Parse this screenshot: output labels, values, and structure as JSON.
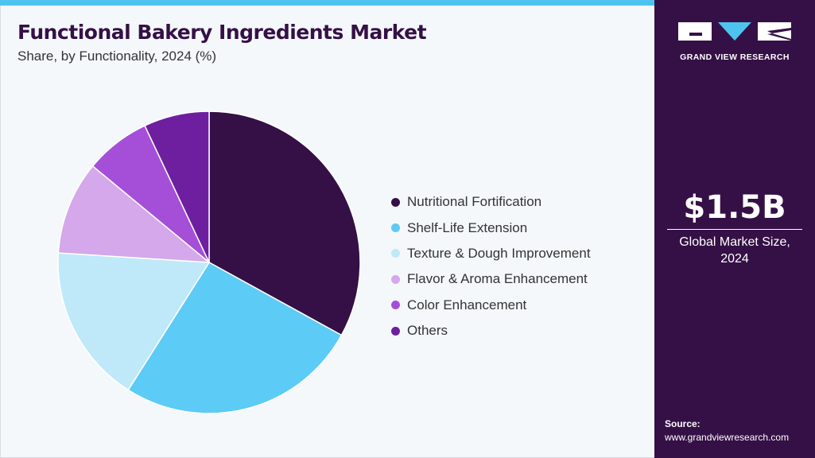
{
  "header": {
    "title": "Functional Bakery Ingredients Market",
    "subtitle": "Share, by Functionality, 2024 (%)"
  },
  "chart_data": {
    "type": "pie",
    "title": "Functional Bakery Ingredients Market",
    "subtitle": "Share, by Functionality, 2024 (%)",
    "categories": [
      "Nutritional Fortification",
      "Shelf-Life Extension",
      "Texture & Dough Improvement",
      "Flavor & Aroma Enhancement",
      "Color Enhancement",
      "Others"
    ],
    "values": [
      33,
      26,
      17,
      10,
      7,
      7
    ],
    "colors": [
      "#351046",
      "#5ccbf5",
      "#bfe9f9",
      "#d4a8eb",
      "#a54fd9",
      "#6e1fa0"
    ],
    "legend_position": "right"
  },
  "sidebar": {
    "brand": "GRAND VIEW RESEARCH",
    "market_value": "$1.5B",
    "market_caption_line1": "Global Market Size,",
    "market_caption_line2": "2024",
    "source_label": "Source:",
    "source_url": "www.grandviewresearch.com"
  }
}
